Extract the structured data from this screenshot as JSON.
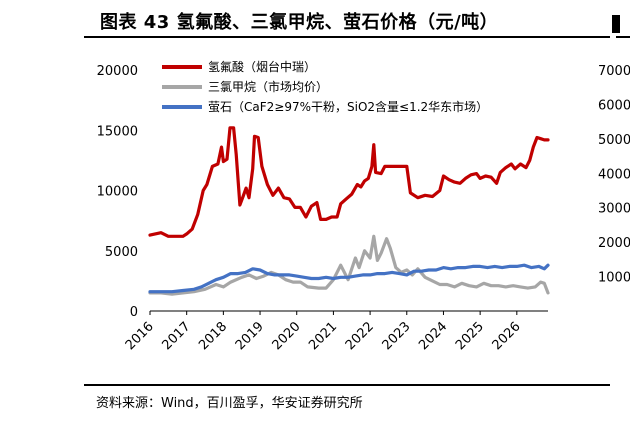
{
  "title": "图表 43 氢氟酸、三氯甲烷、萤石价格（元/吨）",
  "source": "资料来源：Wind，百川盈孚，华安证券研究所",
  "chart_data": [
    {
      "type": "line",
      "x_ticks": [
        "2016",
        "2017",
        "2018",
        "2019",
        "2020",
        "2021",
        "2022",
        "2023",
        "2024",
        "2025",
        "2026"
      ],
      "y_ticks": [
        "20000",
        "15000",
        "10000",
        "5000",
        "0"
      ],
      "ylim": [
        0,
        20000
      ],
      "grid": false,
      "legend_position": "top-left",
      "series": [
        {
          "name": "氢氟酸（烟台中瑞）",
          "color": "#c00000",
          "points": [
            [
              2016.0,
              6300
            ],
            [
              2016.3,
              6500
            ],
            [
              2016.5,
              6200
            ],
            [
              2016.9,
              6200
            ],
            [
              2017.0,
              6400
            ],
            [
              2017.15,
              6800
            ],
            [
              2017.3,
              8000
            ],
            [
              2017.45,
              10000
            ],
            [
              2017.55,
              10500
            ],
            [
              2017.7,
              12000
            ],
            [
              2017.85,
              12200
            ],
            [
              2017.95,
              13600
            ],
            [
              2018.0,
              12400
            ],
            [
              2018.1,
              12600
            ],
            [
              2018.18,
              15200
            ],
            [
              2018.28,
              15200
            ],
            [
              2018.35,
              13000
            ],
            [
              2018.45,
              8800
            ],
            [
              2018.55,
              9600
            ],
            [
              2018.62,
              10200
            ],
            [
              2018.7,
              9400
            ],
            [
              2018.8,
              11800
            ],
            [
              2018.85,
              14500
            ],
            [
              2018.95,
              14400
            ],
            [
              2019.05,
              12000
            ],
            [
              2019.2,
              10500
            ],
            [
              2019.35,
              9600
            ],
            [
              2019.5,
              10200
            ],
            [
              2019.65,
              9400
            ],
            [
              2019.8,
              9300
            ],
            [
              2019.95,
              8600
            ],
            [
              2020.1,
              8600
            ],
            [
              2020.25,
              7800
            ],
            [
              2020.4,
              8700
            ],
            [
              2020.55,
              9000
            ],
            [
              2020.65,
              7600
            ],
            [
              2020.8,
              7600
            ],
            [
              2020.95,
              7800
            ],
            [
              2021.1,
              7800
            ],
            [
              2021.2,
              8900
            ],
            [
              2021.35,
              9300
            ],
            [
              2021.5,
              9700
            ],
            [
              2021.65,
              10500
            ],
            [
              2021.75,
              10300
            ],
            [
              2021.85,
              10800
            ],
            [
              2021.95,
              11000
            ],
            [
              2022.05,
              12000
            ],
            [
              2022.1,
              13800
            ],
            [
              2022.15,
              11500
            ],
            [
              2022.3,
              11400
            ],
            [
              2022.4,
              12000
            ],
            [
              2022.5,
              12000
            ],
            [
              2022.7,
              12000
            ],
            [
              2022.85,
              12000
            ],
            [
              2023.0,
              12000
            ],
            [
              2023.1,
              9800
            ],
            [
              2023.3,
              9400
            ],
            [
              2023.5,
              9600
            ],
            [
              2023.7,
              9500
            ],
            [
              2023.9,
              10000
            ],
            [
              2024.0,
              11200
            ],
            [
              2024.15,
              10900
            ],
            [
              2024.3,
              10700
            ],
            [
              2024.45,
              10600
            ],
            [
              2024.6,
              11000
            ],
            [
              2024.75,
              11300
            ],
            [
              2024.9,
              11400
            ],
            [
              2025.0,
              11000
            ],
            [
              2025.15,
              11200
            ],
            [
              2025.3,
              11100
            ],
            [
              2025.45,
              10600
            ],
            [
              2025.55,
              11500
            ],
            [
              2025.7,
              11900
            ],
            [
              2025.85,
              12200
            ],
            [
              2025.95,
              11800
            ],
            [
              2026.1,
              12200
            ],
            [
              2026.25,
              11900
            ],
            [
              2026.35,
              12500
            ],
            [
              2026.45,
              13600
            ],
            [
              2026.55,
              14400
            ],
            [
              2026.65,
              14300
            ],
            [
              2026.75,
              14200
            ],
            [
              2026.85,
              14200
            ]
          ]
        },
        {
          "name": "三氯甲烷（市场均价）",
          "color": "#a6a6a6",
          "points": [
            [
              2016.0,
              1500
            ],
            [
              2016.3,
              1500
            ],
            [
              2016.6,
              1400
            ],
            [
              2016.9,
              1500
            ],
            [
              2017.2,
              1600
            ],
            [
              2017.5,
              1800
            ],
            [
              2017.8,
              2200
            ],
            [
              2018.0,
              2000
            ],
            [
              2018.2,
              2400
            ],
            [
              2018.5,
              2800
            ],
            [
              2018.7,
              3000
            ],
            [
              2018.9,
              2700
            ],
            [
              2019.1,
              2900
            ],
            [
              2019.3,
              3200
            ],
            [
              2019.5,
              3000
            ],
            [
              2019.7,
              2600
            ],
            [
              2019.9,
              2400
            ],
            [
              2020.1,
              2400
            ],
            [
              2020.3,
              2000
            ],
            [
              2020.6,
              1900
            ],
            [
              2020.8,
              1900
            ],
            [
              2021.0,
              2600
            ],
            [
              2021.2,
              3800
            ],
            [
              2021.4,
              2600
            ],
            [
              2021.6,
              4400
            ],
            [
              2021.7,
              3600
            ],
            [
              2021.85,
              5000
            ],
            [
              2022.0,
              4400
            ],
            [
              2022.1,
              6200
            ],
            [
              2022.2,
              4200
            ],
            [
              2022.3,
              4800
            ],
            [
              2022.45,
              6000
            ],
            [
              2022.55,
              5200
            ],
            [
              2022.7,
              3600
            ],
            [
              2022.85,
              3200
            ],
            [
              2023.0,
              3400
            ],
            [
              2023.15,
              3000
            ],
            [
              2023.3,
              3500
            ],
            [
              2023.5,
              2800
            ],
            [
              2023.7,
              2500
            ],
            [
              2023.9,
              2200
            ],
            [
              2024.1,
              2200
            ],
            [
              2024.3,
              2000
            ],
            [
              2024.5,
              2300
            ],
            [
              2024.7,
              2100
            ],
            [
              2024.9,
              2000
            ],
            [
              2025.1,
              2300
            ],
            [
              2025.3,
              2100
            ],
            [
              2025.5,
              2100
            ],
            [
              2025.7,
              2000
            ],
            [
              2025.9,
              2100
            ],
            [
              2026.1,
              2000
            ],
            [
              2026.3,
              1900
            ],
            [
              2026.5,
              2000
            ],
            [
              2026.65,
              2400
            ],
            [
              2026.75,
              2300
            ],
            [
              2026.85,
              1500
            ]
          ]
        },
        {
          "name": "萤石（CaF2≥97%干粉，SiO2含量≤1.2华东市场）",
          "color": "#4472c4",
          "points": [
            [
              2016.0,
              1600
            ],
            [
              2016.3,
              1600
            ],
            [
              2016.6,
              1600
            ],
            [
              2016.9,
              1700
            ],
            [
              2017.2,
              1800
            ],
            [
              2017.4,
              2000
            ],
            [
              2017.6,
              2300
            ],
            [
              2017.8,
              2600
            ],
            [
              2018.0,
              2800
            ],
            [
              2018.2,
              3100
            ],
            [
              2018.4,
              3100
            ],
            [
              2018.6,
              3200
            ],
            [
              2018.8,
              3500
            ],
            [
              2019.0,
              3400
            ],
            [
              2019.2,
              3100
            ],
            [
              2019.4,
              3000
            ],
            [
              2019.6,
              3000
            ],
            [
              2019.8,
              3000
            ],
            [
              2020.0,
              2900
            ],
            [
              2020.2,
              2800
            ],
            [
              2020.4,
              2700
            ],
            [
              2020.6,
              2700
            ],
            [
              2020.8,
              2800
            ],
            [
              2021.0,
              2700
            ],
            [
              2021.2,
              2800
            ],
            [
              2021.4,
              2800
            ],
            [
              2021.6,
              2900
            ],
            [
              2021.8,
              3000
            ],
            [
              2022.0,
              3000
            ],
            [
              2022.2,
              3100
            ],
            [
              2022.4,
              3100
            ],
            [
              2022.6,
              3200
            ],
            [
              2022.8,
              3100
            ],
            [
              2023.0,
              3000
            ],
            [
              2023.2,
              3300
            ],
            [
              2023.4,
              3300
            ],
            [
              2023.6,
              3400
            ],
            [
              2023.8,
              3400
            ],
            [
              2024.0,
              3600
            ],
            [
              2024.2,
              3500
            ],
            [
              2024.4,
              3600
            ],
            [
              2024.6,
              3600
            ],
            [
              2024.8,
              3700
            ],
            [
              2025.0,
              3700
            ],
            [
              2025.2,
              3600
            ],
            [
              2025.4,
              3700
            ],
            [
              2025.6,
              3600
            ],
            [
              2025.8,
              3700
            ],
            [
              2026.0,
              3700
            ],
            [
              2026.2,
              3800
            ],
            [
              2026.4,
              3600
            ],
            [
              2026.6,
              3700
            ],
            [
              2026.75,
              3500
            ],
            [
              2026.85,
              3800
            ]
          ]
        }
      ]
    },
    {
      "type": "line",
      "partial": true,
      "y_ticks": [
        "7000",
        "6000",
        "5000",
        "4000",
        "3000",
        "2000",
        "1000"
      ],
      "ylim": [
        0,
        7000
      ]
    }
  ]
}
